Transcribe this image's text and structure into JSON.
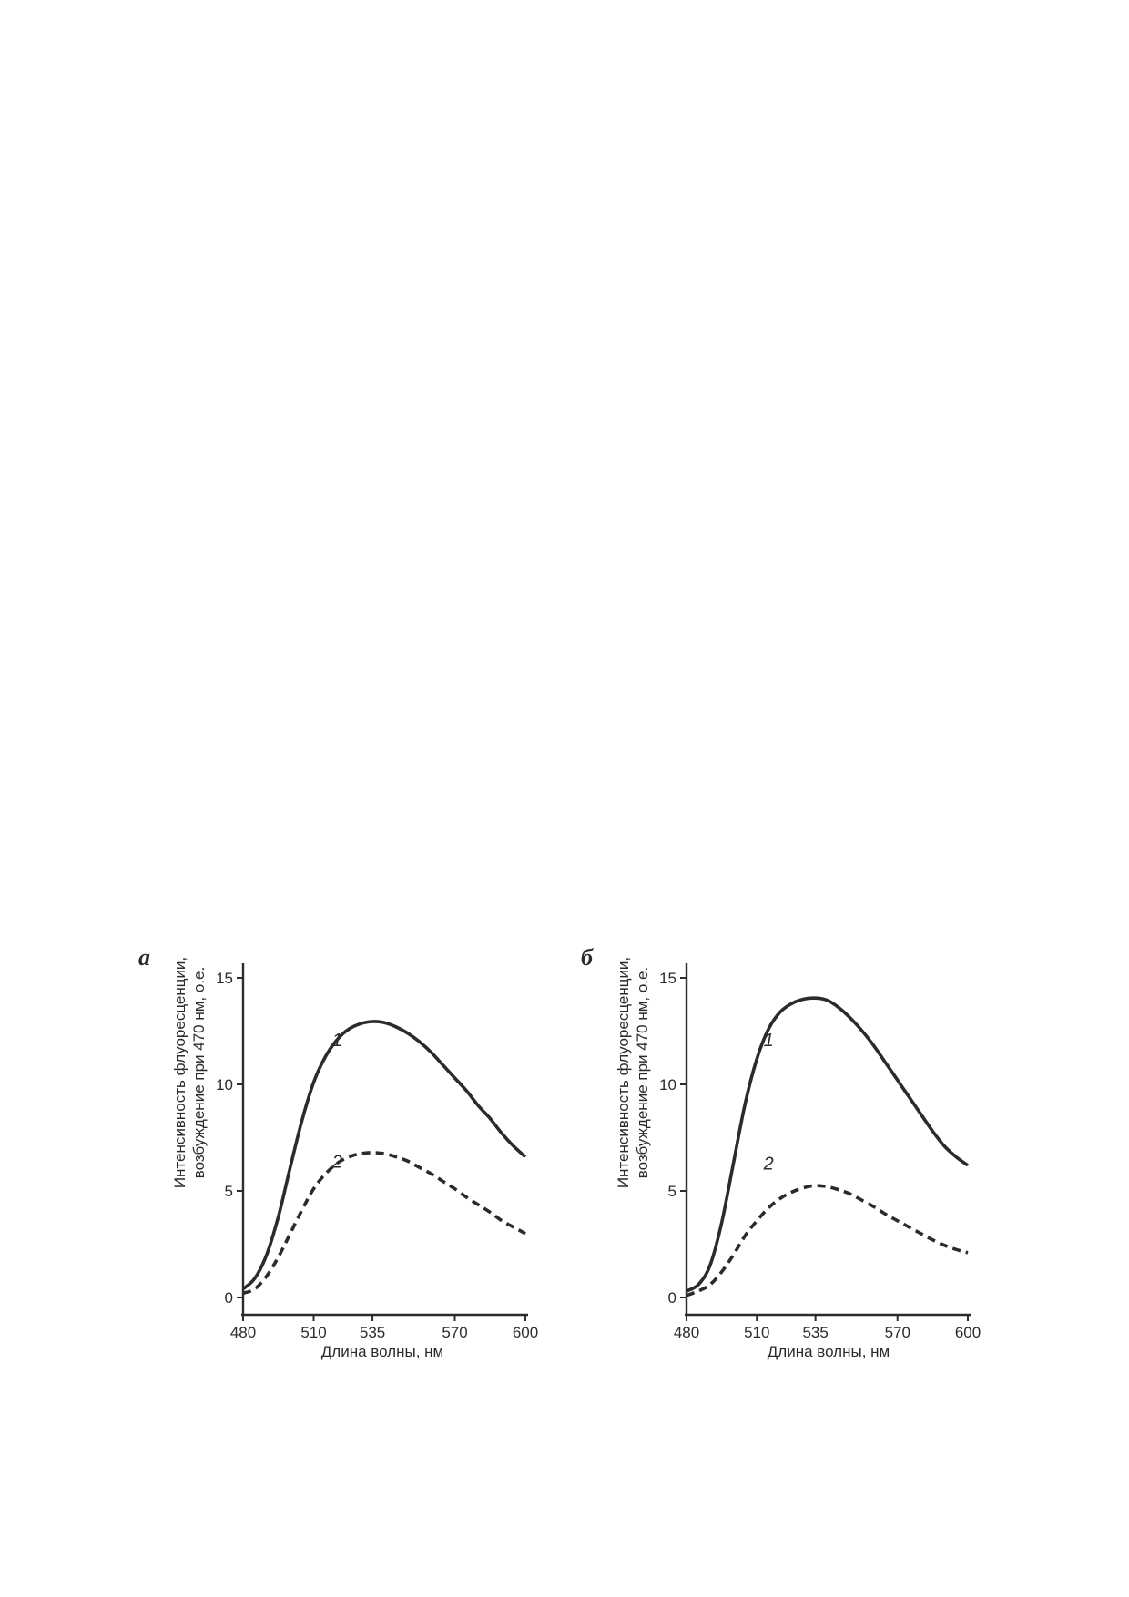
{
  "chart_data": [
    {
      "panel": "а",
      "type": "line",
      "xlabel": "Длина волны, нм",
      "ylabel": [
        "Интенсивность флуоресценции,",
        "возбуждение при 470 нм, о.е."
      ],
      "xlim": [
        480,
        600
      ],
      "ylim": [
        0,
        15
      ],
      "xticks": [
        480,
        510,
        535,
        570,
        600
      ],
      "yticks": [
        0,
        5,
        10,
        15
      ],
      "grid": false,
      "series": [
        {
          "label": "1",
          "style": "solid",
          "x": [
            480,
            485,
            490,
            495,
            500,
            505,
            510,
            515,
            520,
            525,
            530,
            535,
            540,
            545,
            550,
            555,
            560,
            565,
            570,
            575,
            580,
            585,
            590,
            595,
            600
          ],
          "y": [
            0.4,
            0.9,
            2.0,
            3.8,
            6.1,
            8.3,
            10.1,
            11.3,
            12.1,
            12.6,
            12.85,
            12.95,
            12.9,
            12.7,
            12.4,
            12.0,
            11.5,
            10.9,
            10.3,
            9.7,
            9.0,
            8.4,
            7.7,
            7.1,
            6.6
          ]
        },
        {
          "label": "2",
          "style": "dashed",
          "x": [
            480,
            485,
            490,
            495,
            500,
            505,
            510,
            515,
            520,
            525,
            530,
            535,
            540,
            545,
            550,
            555,
            560,
            565,
            570,
            575,
            580,
            585,
            590,
            595,
            600
          ],
          "y": [
            0.2,
            0.4,
            1.0,
            1.9,
            3.0,
            4.1,
            5.1,
            5.8,
            6.3,
            6.6,
            6.75,
            6.8,
            6.75,
            6.6,
            6.4,
            6.1,
            5.8,
            5.45,
            5.1,
            4.7,
            4.35,
            4.0,
            3.6,
            3.3,
            3.0
          ]
        }
      ],
      "series_label_positions": {
        "1": [
          520,
          11.8
        ],
        "2": [
          520,
          6.1
        ]
      }
    },
    {
      "panel": "б",
      "type": "line",
      "xlabel": "Длина волны, нм",
      "ylabel": [
        "Интенсивность флуоресценции,",
        "возбуждение при 470 нм, о.е."
      ],
      "xlim": [
        480,
        600
      ],
      "ylim": [
        0,
        15
      ],
      "xticks": [
        480,
        510,
        535,
        570,
        600
      ],
      "yticks": [
        0,
        5,
        10,
        15
      ],
      "grid": false,
      "series": [
        {
          "label": "1",
          "style": "solid",
          "x": [
            480,
            485,
            490,
            495,
            500,
            505,
            510,
            515,
            520,
            525,
            530,
            535,
            540,
            545,
            550,
            555,
            560,
            565,
            570,
            575,
            580,
            585,
            590,
            595,
            600
          ],
          "y": [
            0.3,
            0.6,
            1.5,
            3.5,
            6.3,
            9.1,
            11.2,
            12.6,
            13.4,
            13.8,
            14.0,
            14.05,
            13.95,
            13.6,
            13.1,
            12.5,
            11.8,
            11.0,
            10.2,
            9.4,
            8.6,
            7.8,
            7.1,
            6.6,
            6.2
          ]
        },
        {
          "label": "2",
          "style": "dashed",
          "x": [
            480,
            485,
            490,
            495,
            500,
            505,
            510,
            515,
            520,
            525,
            530,
            535,
            540,
            545,
            550,
            555,
            560,
            565,
            570,
            575,
            580,
            585,
            590,
            595,
            600
          ],
          "y": [
            0.1,
            0.3,
            0.6,
            1.2,
            2.0,
            2.9,
            3.6,
            4.2,
            4.65,
            4.95,
            5.15,
            5.25,
            5.2,
            5.05,
            4.85,
            4.55,
            4.25,
            3.9,
            3.6,
            3.3,
            3.0,
            2.7,
            2.45,
            2.25,
            2.1
          ]
        }
      ],
      "series_label_positions": {
        "1": [
          515,
          11.8
        ],
        "2": [
          515,
          6.0
        ]
      }
    }
  ]
}
